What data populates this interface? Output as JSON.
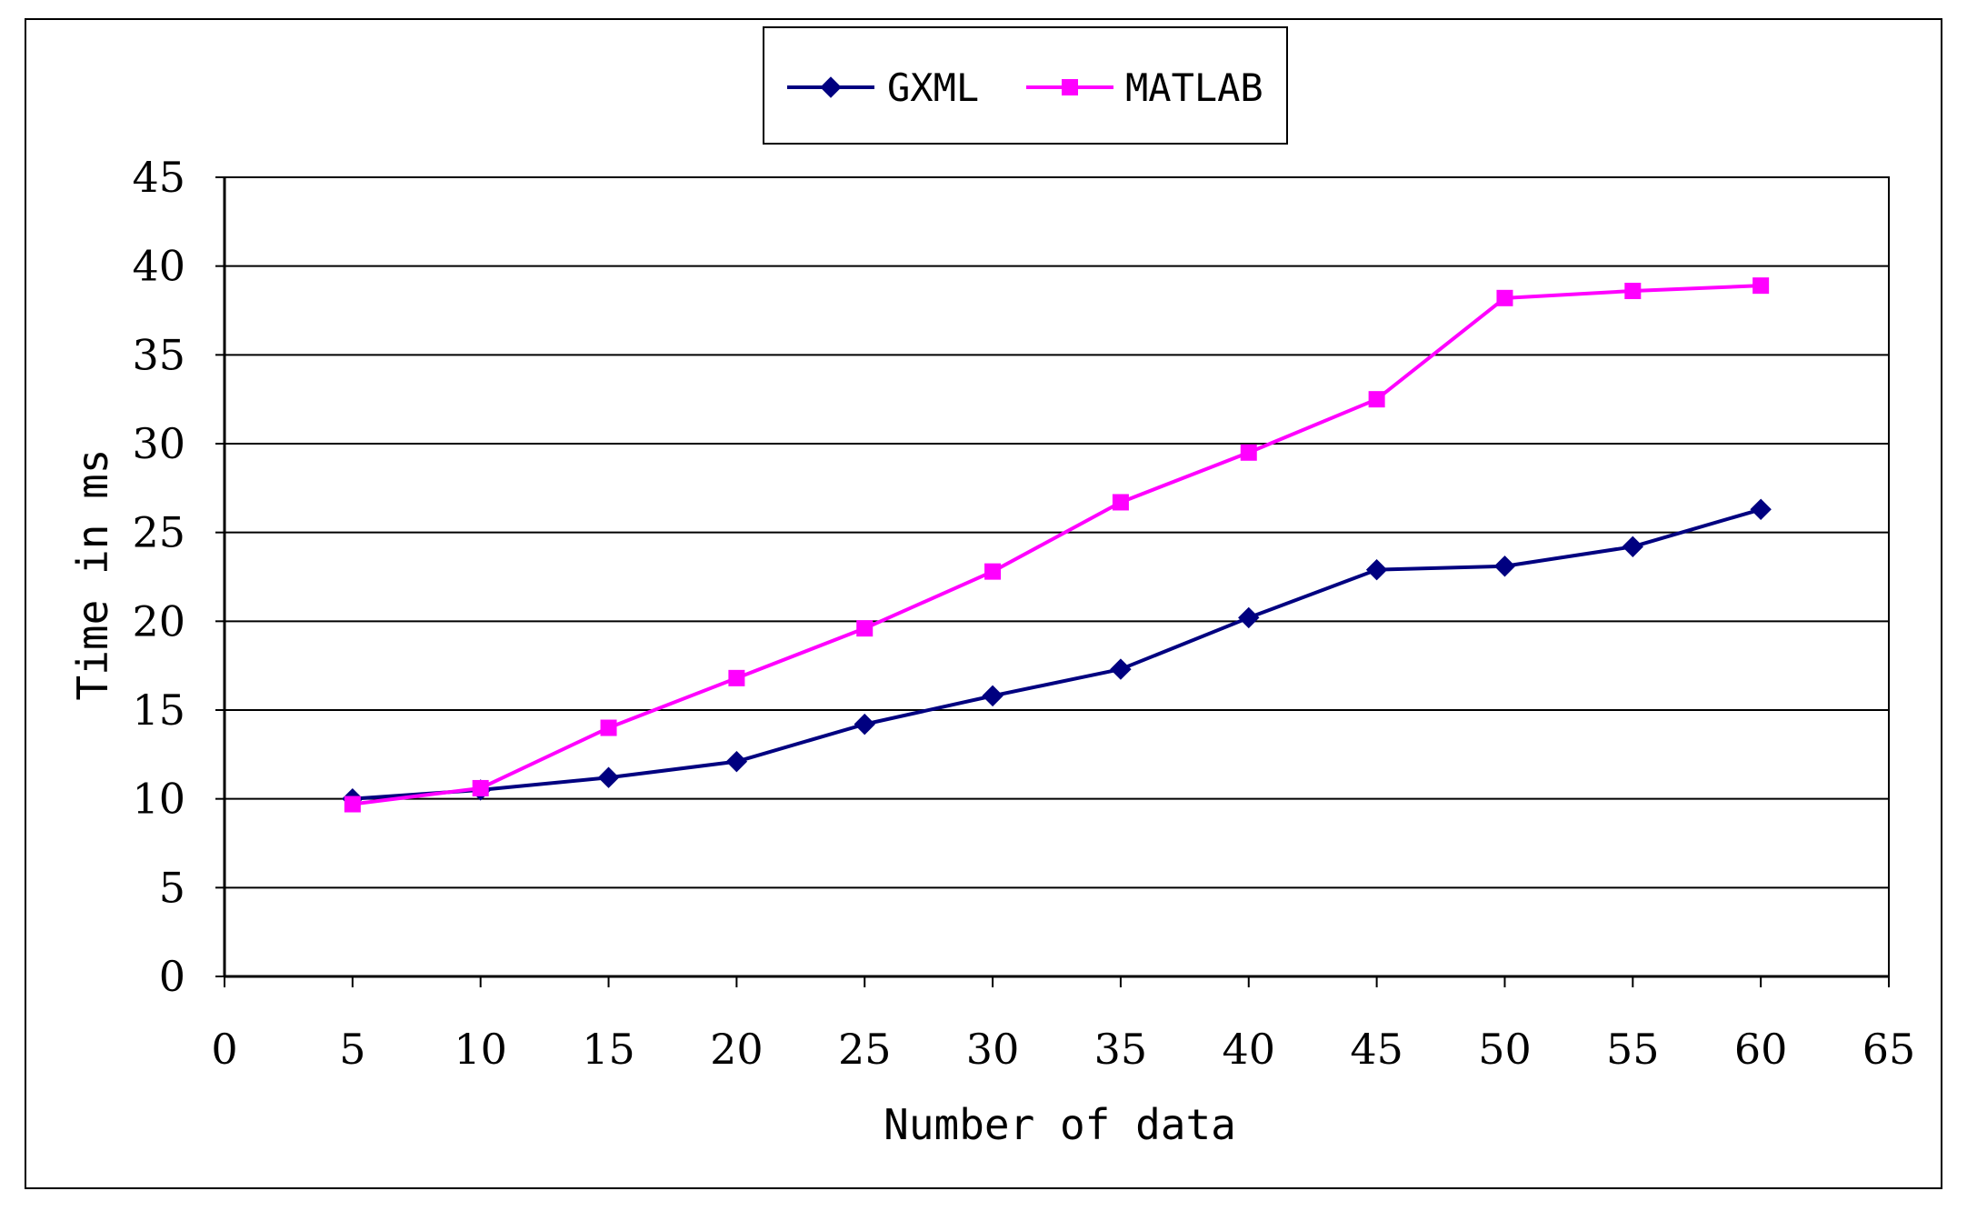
{
  "chart_data": {
    "type": "line",
    "title": "",
    "xlabel": "Number of data",
    "ylabel": "Time in ms",
    "xlim": [
      0,
      65
    ],
    "ylim": [
      0,
      45
    ],
    "x_ticks": [
      0,
      5,
      10,
      15,
      20,
      25,
      30,
      35,
      40,
      45,
      50,
      55,
      60,
      65
    ],
    "y_ticks": [
      0,
      5,
      10,
      15,
      20,
      25,
      30,
      35,
      40,
      45
    ],
    "x": [
      5,
      10,
      15,
      20,
      25,
      30,
      35,
      40,
      45,
      50,
      55,
      60
    ],
    "grid": "horizontal",
    "legend_position": "top-center",
    "series": [
      {
        "name": "GXML",
        "color": "#000080",
        "marker": "diamond",
        "values": [
          10.0,
          10.5,
          11.2,
          12.1,
          14.2,
          15.8,
          17.3,
          20.2,
          22.9,
          23.1,
          24.2,
          26.3
        ]
      },
      {
        "name": "MATLAB",
        "color": "#FF00FF",
        "marker": "square",
        "values": [
          9.7,
          10.6,
          14.0,
          16.8,
          19.6,
          22.8,
          26.7,
          29.5,
          32.5,
          38.2,
          38.6,
          38.9
        ]
      }
    ]
  }
}
